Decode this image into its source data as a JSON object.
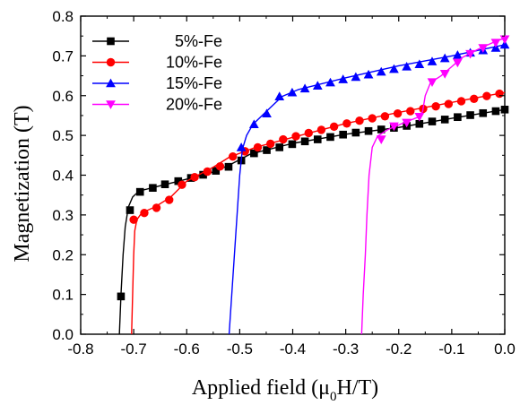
{
  "chart_data": {
    "type": "line",
    "xlabel_main": "Applied field (μ",
    "xlabel_sub": "0",
    "xlabel_end": "H/T)",
    "ylabel": "Magnetization (T)",
    "xlim": [
      -0.8,
      0.0
    ],
    "ylim": [
      0.0,
      0.8
    ],
    "xticks": [
      -0.8,
      -0.7,
      -0.6,
      -0.5,
      -0.4,
      -0.3,
      -0.2,
      -0.1,
      0.0
    ],
    "yticks": [
      0.0,
      0.1,
      0.2,
      0.3,
      0.4,
      0.5,
      0.6,
      0.7,
      0.8
    ],
    "grid": false,
    "legend_position": "top-left",
    "series": [
      {
        "name": "5%-Fe",
        "color": "#000000",
        "marker": "square",
        "curve": [
          [
            -0.727,
            0.0
          ],
          [
            -0.724,
            0.1
          ],
          [
            -0.72,
            0.2
          ],
          [
            -0.716,
            0.27
          ],
          [
            -0.71,
            0.32
          ],
          [
            -0.702,
            0.345
          ],
          [
            -0.69,
            0.36
          ],
          [
            -0.66,
            0.37
          ],
          [
            -0.6,
            0.39
          ],
          [
            -0.55,
            0.408
          ],
          [
            -0.52,
            0.425
          ],
          [
            -0.48,
            0.453
          ],
          [
            -0.4,
            0.48
          ],
          [
            -0.3,
            0.503
          ],
          [
            -0.2,
            0.52
          ],
          [
            -0.1,
            0.543
          ],
          [
            0.0,
            0.565
          ]
        ],
        "points": [
          [
            -0.724,
            0.095
          ],
          [
            -0.707,
            0.312
          ],
          [
            -0.688,
            0.358
          ],
          [
            -0.664,
            0.368
          ],
          [
            -0.641,
            0.377
          ],
          [
            -0.616,
            0.385
          ],
          [
            -0.592,
            0.393
          ],
          [
            -0.569,
            0.401
          ],
          [
            -0.545,
            0.411
          ],
          [
            -0.521,
            0.421
          ],
          [
            -0.497,
            0.437
          ],
          [
            -0.473,
            0.455
          ],
          [
            -0.449,
            0.463
          ],
          [
            -0.425,
            0.47
          ],
          [
            -0.401,
            0.478
          ],
          [
            -0.377,
            0.485
          ],
          [
            -0.353,
            0.49
          ],
          [
            -0.329,
            0.496
          ],
          [
            -0.305,
            0.502
          ],
          [
            -0.281,
            0.507
          ],
          [
            -0.257,
            0.511
          ],
          [
            -0.233,
            0.515
          ],
          [
            -0.209,
            0.519
          ],
          [
            -0.185,
            0.524
          ],
          [
            -0.161,
            0.529
          ],
          [
            -0.137,
            0.535
          ],
          [
            -0.113,
            0.54
          ],
          [
            -0.089,
            0.546
          ],
          [
            -0.065,
            0.551
          ],
          [
            -0.041,
            0.556
          ],
          [
            -0.017,
            0.561
          ],
          [
            0.0,
            0.565
          ]
        ]
      },
      {
        "name": "10%-Fe",
        "color": "#ff0000",
        "marker": "circle",
        "curve": [
          [
            -0.704,
            0.0
          ],
          [
            -0.702,
            0.1
          ],
          [
            -0.7,
            0.2
          ],
          [
            -0.698,
            0.26
          ],
          [
            -0.694,
            0.288
          ],
          [
            -0.685,
            0.305
          ],
          [
            -0.66,
            0.32
          ],
          [
            -0.63,
            0.345
          ],
          [
            -0.6,
            0.385
          ],
          [
            -0.55,
            0.42
          ],
          [
            -0.52,
            0.445
          ],
          [
            -0.47,
            0.47
          ],
          [
            -0.4,
            0.495
          ],
          [
            -0.3,
            0.53
          ],
          [
            -0.2,
            0.558
          ],
          [
            -0.1,
            0.583
          ],
          [
            0.0,
            0.608
          ]
        ],
        "points": [
          [
            -0.7,
            0.288
          ],
          [
            -0.68,
            0.305
          ],
          [
            -0.657,
            0.318
          ],
          [
            -0.633,
            0.338
          ],
          [
            -0.609,
            0.376
          ],
          [
            -0.585,
            0.395
          ],
          [
            -0.561,
            0.409
          ],
          [
            -0.537,
            0.422
          ],
          [
            -0.513,
            0.447
          ],
          [
            -0.49,
            0.46
          ],
          [
            -0.466,
            0.47
          ],
          [
            -0.442,
            0.479
          ],
          [
            -0.418,
            0.49
          ],
          [
            -0.394,
            0.498
          ],
          [
            -0.37,
            0.506
          ],
          [
            -0.346,
            0.514
          ],
          [
            -0.322,
            0.522
          ],
          [
            -0.298,
            0.53
          ],
          [
            -0.274,
            0.537
          ],
          [
            -0.25,
            0.543
          ],
          [
            -0.226,
            0.548
          ],
          [
            -0.202,
            0.555
          ],
          [
            -0.178,
            0.561
          ],
          [
            -0.154,
            0.567
          ],
          [
            -0.13,
            0.573
          ],
          [
            -0.106,
            0.579
          ],
          [
            -0.082,
            0.586
          ],
          [
            -0.058,
            0.592
          ],
          [
            -0.034,
            0.599
          ],
          [
            -0.01,
            0.605
          ]
        ]
      },
      {
        "name": "15%-Fe",
        "color": "#0000ff",
        "marker": "triangle-up",
        "curve": [
          [
            -0.52,
            0.0
          ],
          [
            -0.515,
            0.1
          ],
          [
            -0.51,
            0.2
          ],
          [
            -0.505,
            0.3
          ],
          [
            -0.5,
            0.4
          ],
          [
            -0.495,
            0.465
          ],
          [
            -0.487,
            0.5
          ],
          [
            -0.475,
            0.528
          ],
          [
            -0.45,
            0.56
          ],
          [
            -0.42,
            0.598
          ],
          [
            -0.39,
            0.615
          ],
          [
            -0.3,
            0.645
          ],
          [
            -0.2,
            0.675
          ],
          [
            -0.1,
            0.7
          ],
          [
            0.0,
            0.728
          ]
        ],
        "points": [
          [
            -0.497,
            0.47
          ],
          [
            -0.473,
            0.528
          ],
          [
            -0.449,
            0.555
          ],
          [
            -0.425,
            0.598
          ],
          [
            -0.401,
            0.608
          ],
          [
            -0.377,
            0.618
          ],
          [
            -0.353,
            0.625
          ],
          [
            -0.329,
            0.633
          ],
          [
            -0.305,
            0.641
          ],
          [
            -0.281,
            0.647
          ],
          [
            -0.257,
            0.653
          ],
          [
            -0.233,
            0.66
          ],
          [
            -0.209,
            0.667
          ],
          [
            -0.185,
            0.673
          ],
          [
            -0.161,
            0.679
          ],
          [
            -0.137,
            0.686
          ],
          [
            -0.113,
            0.694
          ],
          [
            -0.089,
            0.702
          ],
          [
            -0.065,
            0.708
          ],
          [
            -0.041,
            0.714
          ],
          [
            -0.017,
            0.72
          ],
          [
            0.0,
            0.728
          ]
        ]
      },
      {
        "name": "20%-Fe",
        "color": "#ff00ff",
        "marker": "triangle-down",
        "curve": [
          [
            -0.27,
            0.0
          ],
          [
            -0.267,
            0.1
          ],
          [
            -0.263,
            0.2
          ],
          [
            -0.26,
            0.3
          ],
          [
            -0.256,
            0.4
          ],
          [
            -0.25,
            0.47
          ],
          [
            -0.24,
            0.498
          ],
          [
            -0.22,
            0.515
          ],
          [
            -0.19,
            0.532
          ],
          [
            -0.165,
            0.545
          ],
          [
            -0.155,
            0.56
          ],
          [
            -0.15,
            0.6
          ],
          [
            -0.14,
            0.633
          ],
          [
            -0.12,
            0.65
          ],
          [
            -0.1,
            0.673
          ],
          [
            -0.08,
            0.696
          ],
          [
            -0.05,
            0.717
          ],
          [
            -0.02,
            0.735
          ],
          [
            0.0,
            0.745
          ]
        ],
        "points": [
          [
            -0.233,
            0.49
          ],
          [
            -0.209,
            0.523
          ],
          [
            -0.185,
            0.532
          ],
          [
            -0.161,
            0.547
          ],
          [
            -0.137,
            0.634
          ],
          [
            -0.113,
            0.655
          ],
          [
            -0.089,
            0.683
          ],
          [
            -0.065,
            0.705
          ],
          [
            -0.041,
            0.72
          ],
          [
            -0.017,
            0.733
          ],
          [
            0.0,
            0.742
          ]
        ]
      }
    ]
  }
}
